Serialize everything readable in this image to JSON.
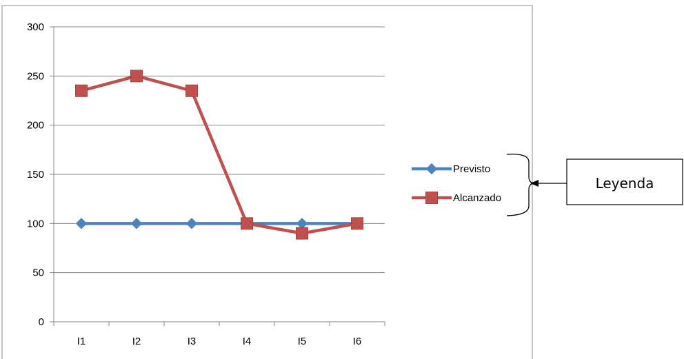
{
  "chart_data": {
    "type": "line",
    "categories": [
      "I1",
      "I2",
      "I3",
      "I4",
      "I5",
      "I6"
    ],
    "series": [
      {
        "name": "Previsto",
        "values": [
          100,
          100,
          100,
          100,
          100,
          100
        ],
        "color": "#4F81BD",
        "marker": "diamond"
      },
      {
        "name": "Alcanzado",
        "values": [
          235,
          250,
          235,
          100,
          90,
          100
        ],
        "color": "#C0504D",
        "marker": "square"
      }
    ],
    "ylim": [
      0,
      300
    ],
    "yticks": [
      0,
      50,
      100,
      150,
      200,
      250,
      300
    ],
    "grid": true,
    "legend": "right"
  },
  "annotation": {
    "label": "Leyenda",
    "points_to": "legend"
  }
}
